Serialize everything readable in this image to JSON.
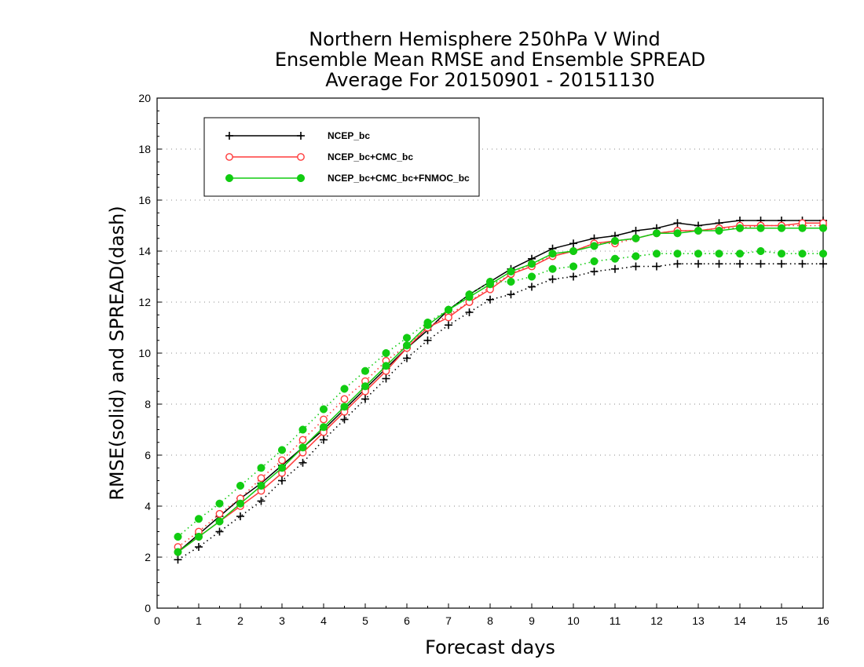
{
  "chart_data": {
    "type": "line",
    "title": [
      "Northern Hemisphere 250hPa V Wind",
      "Ensemble Mean RMSE and Ensemble SPREAD",
      "Average For 20150901 - 20151130"
    ],
    "xlabel": "Forecast days",
    "ylabel": "RMSE(solid) and SPREAD(dash)",
    "xlim": [
      0,
      16
    ],
    "ylim": [
      0,
      20
    ],
    "xticks": [
      0,
      1,
      2,
      3,
      4,
      5,
      6,
      7,
      8,
      9,
      10,
      11,
      12,
      13,
      14,
      15,
      16
    ],
    "yticks": [
      0,
      2,
      4,
      6,
      8,
      10,
      12,
      14,
      16,
      18,
      20
    ],
    "grid": "horizontal-dotted",
    "legend_position": "top-left",
    "x": [
      0.5,
      1,
      1.5,
      2,
      2.5,
      3,
      3.5,
      4,
      4.5,
      5,
      5.5,
      6,
      6.5,
      7,
      7.5,
      8,
      8.5,
      9,
      9.5,
      10,
      10.5,
      11,
      11.5,
      12,
      12.5,
      13,
      13.5,
      14,
      14.5,
      15,
      15.5,
      16
    ],
    "series": [
      {
        "name": "NCEP_bc",
        "color": "#000000",
        "marker": "plus",
        "rmse": [
          2.2,
          2.9,
          3.6,
          4.3,
          4.9,
          5.6,
          6.3,
          7.0,
          7.8,
          8.6,
          9.4,
          10.2,
          10.9,
          11.7,
          12.3,
          12.8,
          13.3,
          13.7,
          14.1,
          14.3,
          14.5,
          14.6,
          14.8,
          14.9,
          15.1,
          15.0,
          15.1,
          15.2,
          15.2,
          15.2,
          15.2,
          15.2
        ],
        "spread": [
          1.9,
          2.4,
          3.0,
          3.6,
          4.2,
          5.0,
          5.7,
          6.6,
          7.4,
          8.2,
          9.0,
          9.8,
          10.5,
          11.1,
          11.6,
          12.1,
          12.3,
          12.6,
          12.9,
          13.0,
          13.2,
          13.3,
          13.4,
          13.4,
          13.5,
          13.5,
          13.5,
          13.5,
          13.5,
          13.5,
          13.5,
          13.5
        ]
      },
      {
        "name": "NCEP_bc+CMC_bc",
        "color": "#ff3b3b",
        "marker": "open-circle",
        "rmse": [
          2.2,
          2.8,
          3.4,
          4.0,
          4.6,
          5.3,
          6.1,
          6.9,
          7.7,
          8.5,
          9.3,
          10.2,
          11.0,
          11.4,
          12.0,
          12.5,
          13.1,
          13.4,
          13.8,
          14.0,
          14.3,
          14.4,
          14.5,
          14.7,
          14.8,
          14.8,
          14.9,
          15.0,
          15.0,
          15.0,
          15.1,
          15.1
        ],
        "spread": [
          2.4,
          3.0,
          3.7,
          4.3,
          5.1,
          5.8,
          6.6,
          7.4,
          8.2,
          8.9,
          9.7,
          10.3,
          11.0,
          11.5,
          12.0,
          12.6,
          13.1,
          13.5,
          13.8,
          14.0,
          14.3,
          14.3,
          14.5,
          14.7,
          14.8,
          14.8,
          14.9,
          14.9,
          15.0,
          15.0,
          15.0,
          15.0
        ]
      },
      {
        "name": "NCEP_bc+CMC_bc+FNMOC_bc",
        "color": "#11cc11",
        "marker": "filled-circle",
        "rmse": [
          2.2,
          2.8,
          3.4,
          4.1,
          4.8,
          5.5,
          6.3,
          7.1,
          7.9,
          8.7,
          9.5,
          10.3,
          11.1,
          11.7,
          12.2,
          12.7,
          13.2,
          13.5,
          13.9,
          14.0,
          14.2,
          14.4,
          14.5,
          14.7,
          14.7,
          14.8,
          14.8,
          14.9,
          14.9,
          14.9,
          14.9,
          14.9
        ],
        "spread": [
          2.8,
          3.5,
          4.1,
          4.8,
          5.5,
          6.2,
          7.0,
          7.8,
          8.6,
          9.3,
          10.0,
          10.6,
          11.2,
          11.7,
          12.3,
          12.8,
          12.8,
          13.0,
          13.3,
          13.4,
          13.6,
          13.7,
          13.8,
          13.9,
          13.9,
          13.9,
          13.9,
          13.9,
          14.0,
          13.9,
          13.9,
          13.9
        ]
      }
    ]
  }
}
